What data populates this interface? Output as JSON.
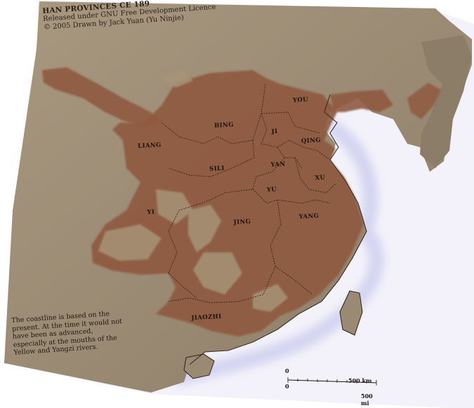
{
  "credits": {
    "title": "HAN PROVINCES CE 189",
    "line1": "Released under GNU Free Development Licence",
    "line2": "© 2005 Drawn by Jack Yuan (Yu Ninjie)"
  },
  "note": "The coastline is based on the present. At the time it would not have been as advanced, especially at the mouths of the Yellow and Yangzi rivers.",
  "provinces": {
    "you": "YOU",
    "bing": "BING",
    "ji": "JI",
    "qing": "QING",
    "liang": "LIANG",
    "sili": "SILI",
    "yan": "YAN",
    "xu": "XU",
    "yu": "YU",
    "yi": "YI",
    "jing": "JING",
    "yang": "YANG",
    "jiaozhi": "JIAOZHI"
  },
  "scale_bar": {
    "zero_km": "0",
    "zero_mi": "0",
    "km": "500 km",
    "mi": "500 mi"
  },
  "colors": {
    "sea": "#f4f3fb",
    "land": "#9a8a74",
    "han": "#8f5a3f",
    "border": "#2a1a10"
  }
}
